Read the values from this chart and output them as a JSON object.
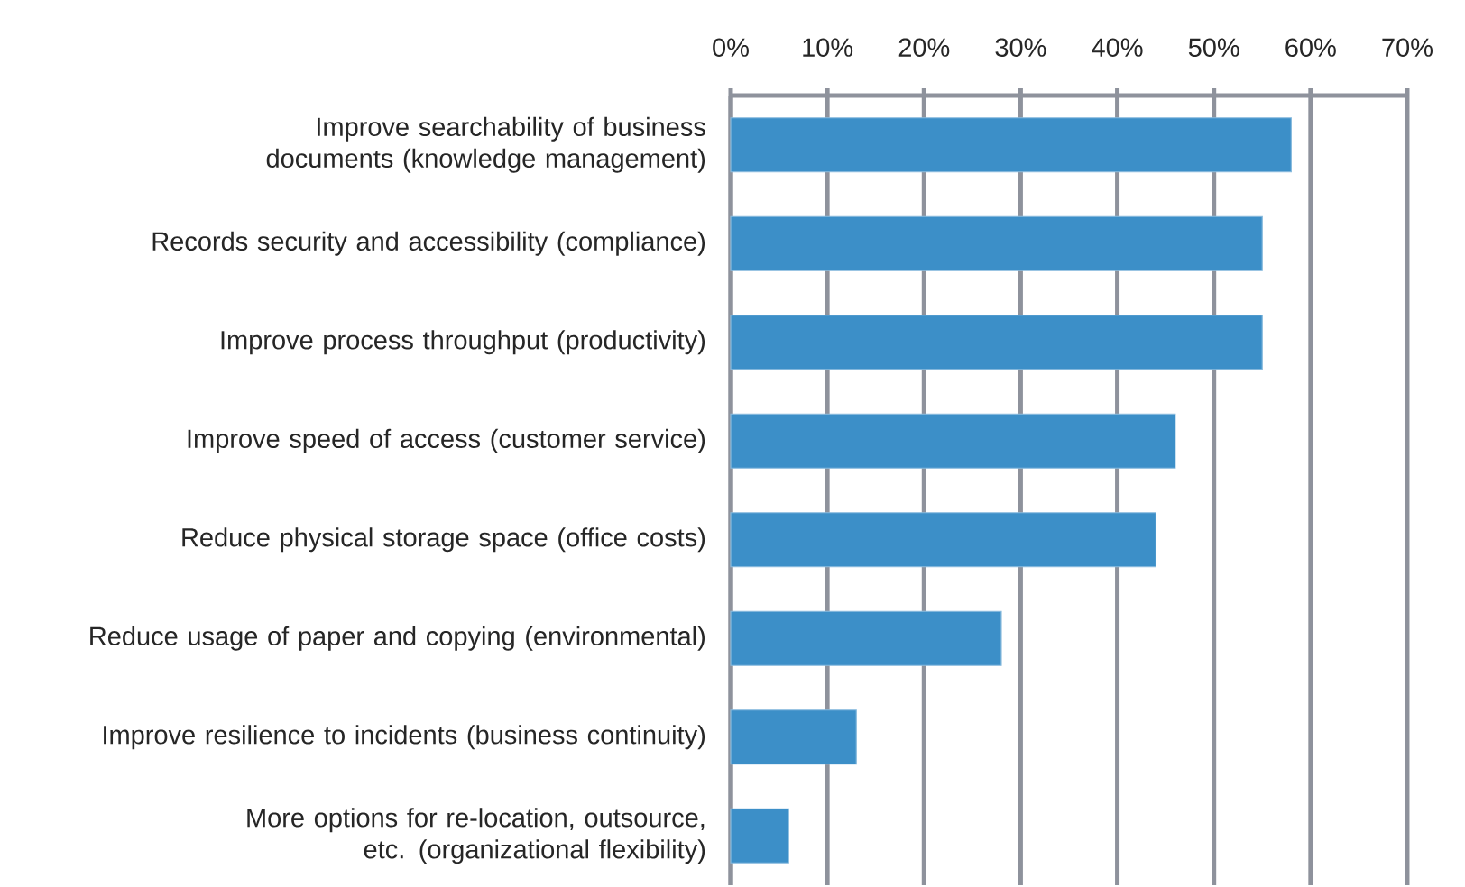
{
  "chart_data": {
    "type": "bar",
    "orientation": "horizontal",
    "categories": [
      "Improve searchability of business documents (knowledge management)",
      "Records security and accessibility (compliance)",
      "Improve process throughput (productivity)",
      "Improve speed of access (customer service)",
      "Reduce physical storage space (office costs)",
      "Reduce usage of paper and copying (environmental)",
      "Improve resilience to incidents (business continuity)",
      "More options for re-location, outsource, etc. (organizational flexibility)"
    ],
    "values": [
      58,
      55,
      55,
      46,
      44,
      28,
      13,
      6
    ],
    "color": "#3c8fc8",
    "xlim": [
      0,
      70
    ],
    "xticks": [
      {
        "value": 0,
        "label": "0%"
      },
      {
        "value": 10,
        "label": "10%"
      },
      {
        "value": 20,
        "label": "20%"
      },
      {
        "value": 30,
        "label": "30%"
      },
      {
        "value": 40,
        "label": "40%"
      },
      {
        "value": 50,
        "label": "50%"
      },
      {
        "value": 60,
        "label": "60%"
      },
      {
        "value": 70,
        "label": "70%"
      }
    ],
    "grid": "x"
  }
}
